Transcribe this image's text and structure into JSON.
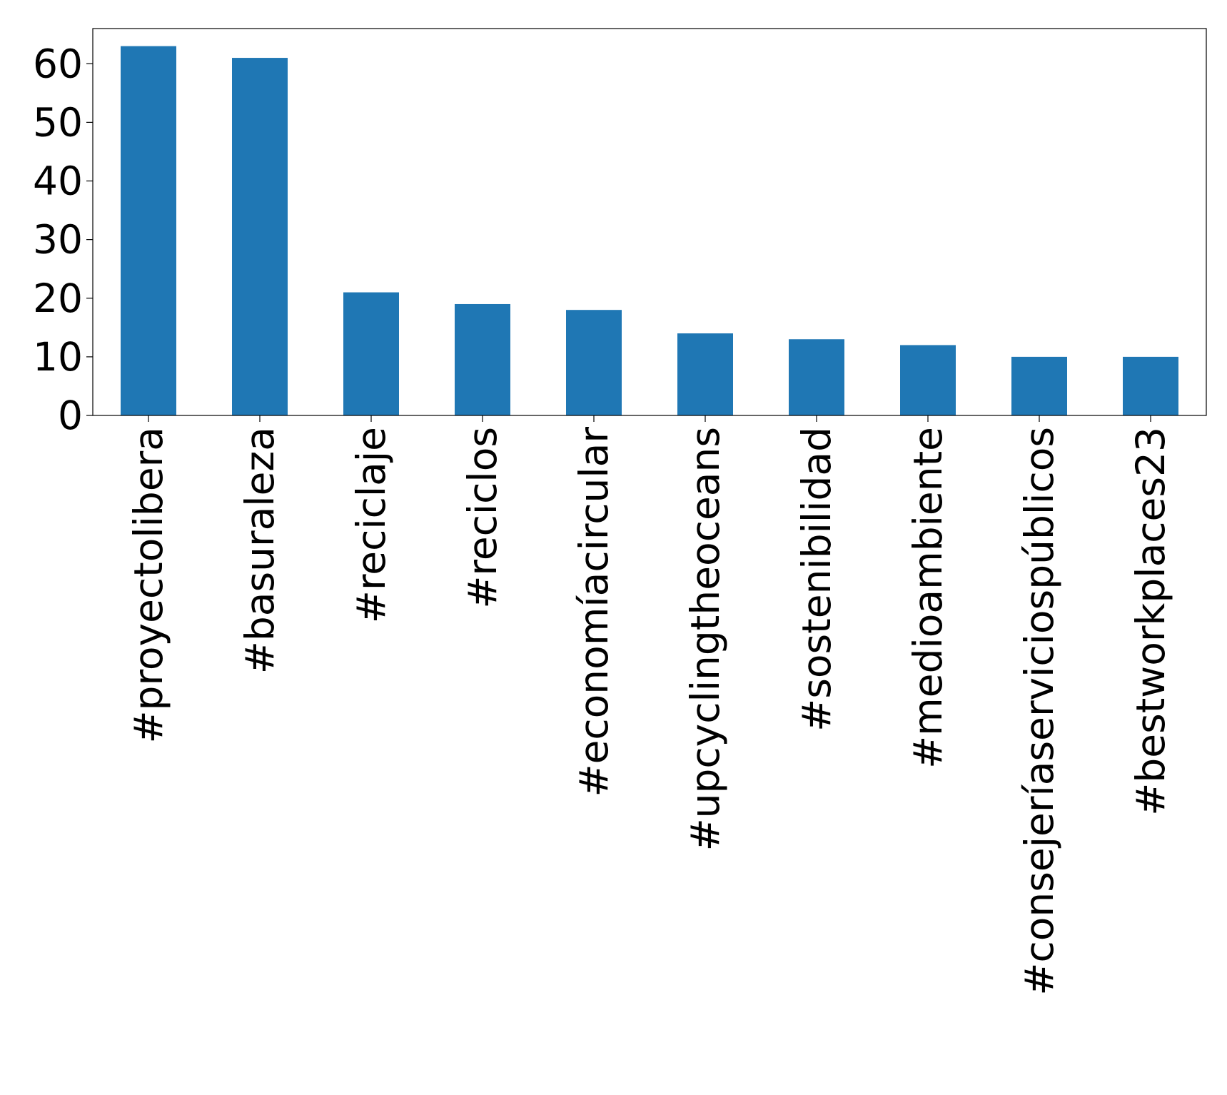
{
  "chart_data": {
    "type": "bar",
    "title": "",
    "xlabel": "",
    "ylabel": "",
    "categories": [
      "#proyectolibera",
      "#basuraleza",
      "#reciclaje",
      "#reciclos",
      "#economíacircular",
      "#upcyclingtheoceans",
      "#sostenibilidad",
      "#medioambiente",
      "#consejeríaserviciospúblicos",
      "#bestworkplaces23"
    ],
    "values": [
      63,
      61,
      21,
      19,
      18,
      14,
      13,
      12,
      10,
      10
    ],
    "ylim": [
      0,
      66
    ],
    "yticks": [
      0,
      10,
      20,
      30,
      40,
      50,
      60
    ],
    "grid": false,
    "legend": false,
    "colors": {
      "bar": "#1f77b4",
      "axis": "#000000",
      "background": "#ffffff"
    }
  }
}
